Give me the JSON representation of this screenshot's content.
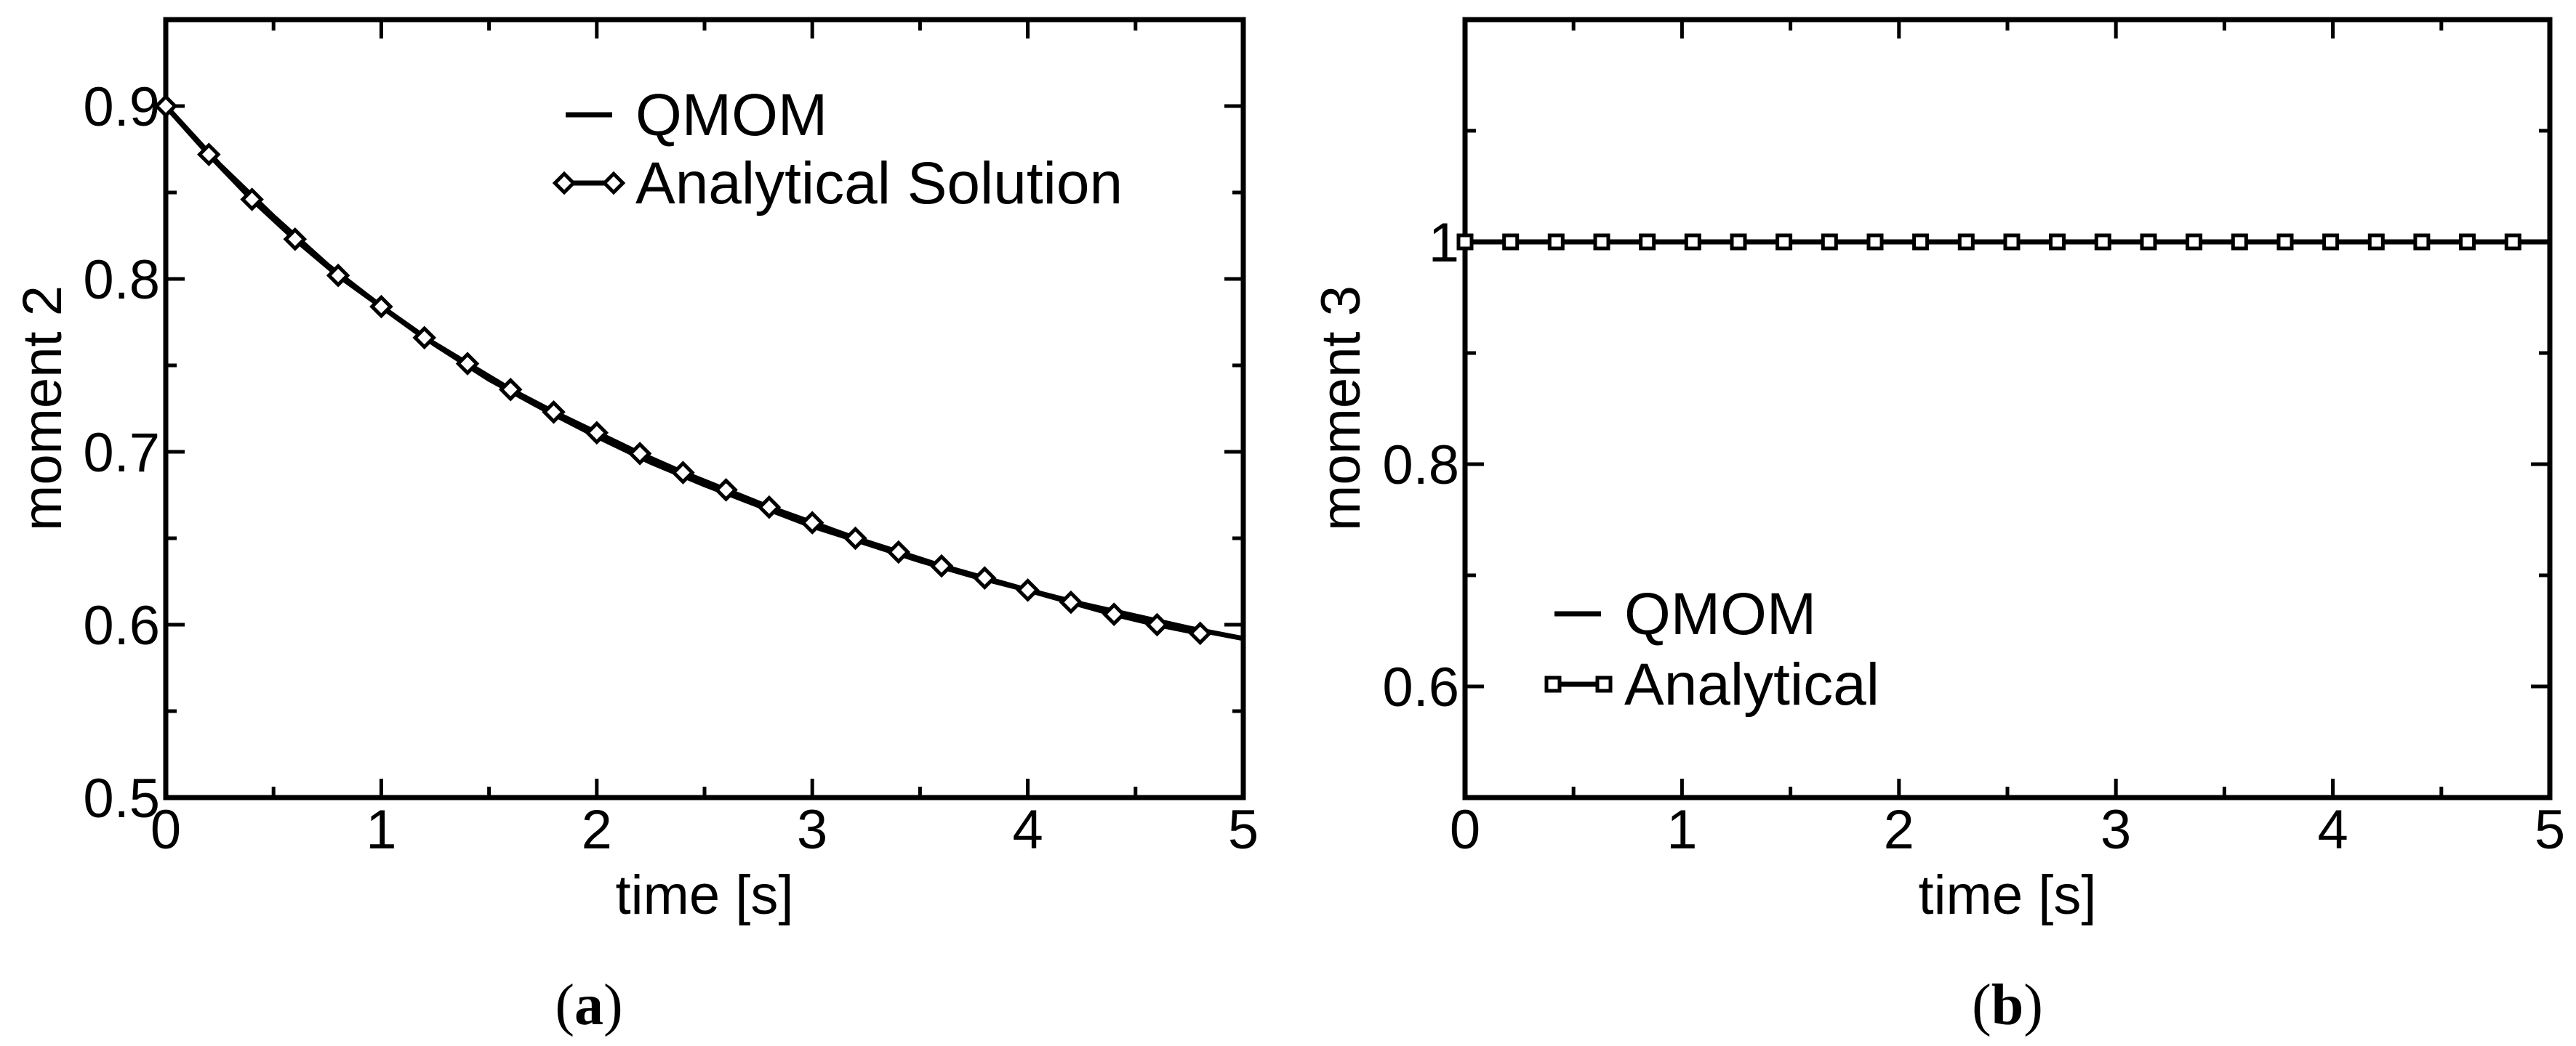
{
  "chart_data": [
    {
      "type": "line",
      "panel": "a",
      "caption": "(a)",
      "xlabel": "time [s]",
      "ylabel": "moment 2",
      "xlim": [
        0,
        5
      ],
      "ylim": [
        0.5,
        0.95
      ],
      "xticks": [
        0,
        1,
        2,
        3,
        4,
        5
      ],
      "yticks": [
        0.5,
        0.6,
        0.7,
        0.8,
        0.9
      ],
      "xtick_labels": [
        "0",
        "1",
        "2",
        "3",
        "4",
        "5"
      ],
      "ytick_labels": [
        "0.5",
        "0.6",
        "0.7",
        "0.8",
        "0.9"
      ],
      "legend_position": "top-right",
      "series": [
        {
          "name": "QMOM",
          "style": "line",
          "x": [
            0,
            0.25,
            0.5,
            0.75,
            1.0,
            1.25,
            1.5,
            1.75,
            2.0,
            2.25,
            2.5,
            2.75,
            3.0,
            3.25,
            3.5,
            3.75,
            4.0,
            4.25,
            4.5,
            4.75,
            5.0
          ],
          "y": [
            0.9,
            0.866,
            0.836,
            0.808,
            0.784,
            0.762,
            0.742,
            0.725,
            0.709,
            0.694,
            0.681,
            0.669,
            0.657,
            0.647,
            0.637,
            0.628,
            0.62,
            0.612,
            0.605,
            0.598,
            0.592
          ]
        },
        {
          "name": "Analytical Solution",
          "style": "line-diamond",
          "x": [
            0,
            0.2,
            0.4,
            0.6,
            0.8,
            1.0,
            1.2,
            1.4,
            1.6,
            1.8,
            2.0,
            2.2,
            2.4,
            2.6,
            2.8,
            3.0,
            3.2,
            3.4,
            3.6,
            3.8,
            4.0,
            4.2,
            4.4,
            4.6,
            4.8
          ],
          "y": [
            0.9,
            0.872,
            0.846,
            0.823,
            0.802,
            0.784,
            0.766,
            0.751,
            0.736,
            0.723,
            0.711,
            0.699,
            0.688,
            0.678,
            0.668,
            0.659,
            0.65,
            0.642,
            0.634,
            0.627,
            0.62,
            0.613,
            0.606,
            0.6,
            0.595
          ]
        }
      ]
    },
    {
      "type": "line",
      "panel": "b",
      "caption": "(b)",
      "xlabel": "time [s]",
      "ylabel": "moment 3",
      "xlim": [
        0,
        5
      ],
      "ylim": [
        0.5,
        1.2
      ],
      "xticks": [
        0,
        1,
        2,
        3,
        4,
        5
      ],
      "yticks": [
        0.6,
        0.8,
        1.0
      ],
      "xtick_labels": [
        "0",
        "1",
        "2",
        "3",
        "4",
        "5"
      ],
      "ytick_labels": [
        "0.6",
        "0.8",
        "1"
      ],
      "legend_position": "bottom-left",
      "series": [
        {
          "name": "QMOM",
          "style": "line",
          "x": [
            0,
            5
          ],
          "y": [
            1.0,
            1.0
          ]
        },
        {
          "name": "Analytical",
          "style": "line-square",
          "x": [
            0,
            0.21,
            0.42,
            0.63,
            0.84,
            1.05,
            1.26,
            1.47,
            1.68,
            1.89,
            2.1,
            2.31,
            2.52,
            2.73,
            2.94,
            3.15,
            3.36,
            3.57,
            3.78,
            3.99,
            4.2,
            4.41,
            4.62,
            4.83
          ],
          "y": [
            1,
            1,
            1,
            1,
            1,
            1,
            1,
            1,
            1,
            1,
            1,
            1,
            1,
            1,
            1,
            1,
            1,
            1,
            1,
            1,
            1,
            1,
            1,
            1
          ]
        }
      ]
    }
  ]
}
